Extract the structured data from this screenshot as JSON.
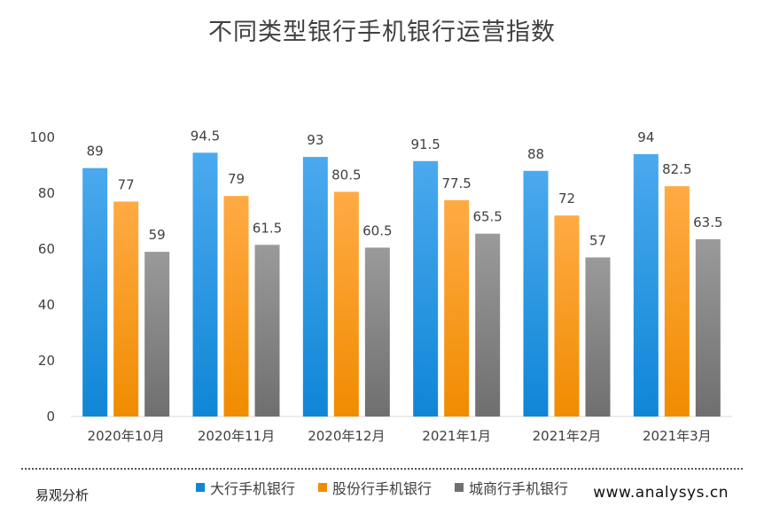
{
  "chart_data": {
    "type": "bar",
    "title": "不同类型银行手机银行运营指数",
    "categories": [
      "2020年10月",
      "2020年11月",
      "2020年12月",
      "2021年1月",
      "2021年2月",
      "2021年3月"
    ],
    "series": [
      {
        "name": "大行手机银行",
        "values": [
          89,
          94.5,
          93,
          91.5,
          88,
          94
        ],
        "color_top": "#4BA9EE",
        "color_bottom": "#0F86D6"
      },
      {
        "name": "股份行手机银行",
        "values": [
          77,
          79,
          80.5,
          77.5,
          72,
          82.5
        ],
        "color_top": "#FFAA44",
        "color_bottom": "#F08C00"
      },
      {
        "name": "城商行手机银行",
        "values": [
          59,
          61.5,
          60.5,
          65.5,
          57,
          63.5
        ],
        "color_top": "#9A9A9A",
        "color_bottom": "#6F6F6F"
      }
    ],
    "yticks": [
      0,
      20,
      40,
      60,
      80,
      100
    ],
    "ylim": [
      0,
      100
    ],
    "grid": false,
    "legend_position": "bottom"
  },
  "footer": {
    "brand": "易观分析",
    "url": "www.analysys.cn"
  }
}
